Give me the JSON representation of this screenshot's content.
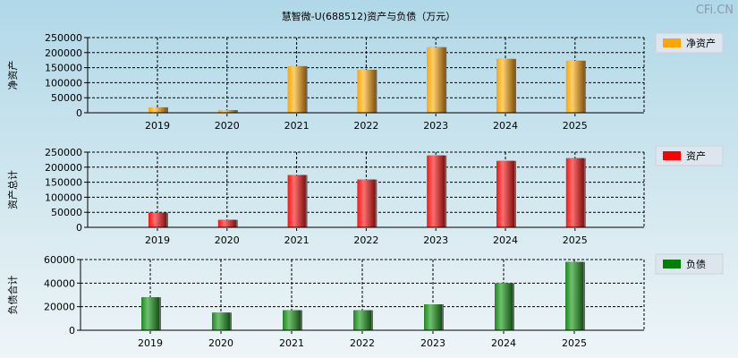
{
  "title": "慧智微-U(688512)资产与负债（万元）",
  "watermark": "CFi.CN",
  "chart_data": [
    {
      "type": "bar",
      "ylabel": "净资产",
      "legend": "净资产",
      "legend_position": "right",
      "color": "#ffa500",
      "categories": [
        "2019",
        "2020",
        "2021",
        "2022",
        "2023",
        "2024",
        "2025"
      ],
      "values": [
        18000,
        9000,
        155000,
        143000,
        218000,
        179000,
        173000
      ],
      "yticks": [
        0,
        50000,
        100000,
        150000,
        200000,
        250000
      ],
      "ylim": [
        0,
        250000
      ],
      "grid": true
    },
    {
      "type": "bar",
      "ylabel": "资产总计",
      "legend": "资产",
      "legend_position": "right",
      "color": "#ff0000",
      "categories": [
        "2019",
        "2020",
        "2021",
        "2022",
        "2023",
        "2024",
        "2025"
      ],
      "values": [
        49000,
        25000,
        174000,
        159000,
        239000,
        221000,
        230000
      ],
      "yticks": [
        0,
        50000,
        100000,
        150000,
        200000,
        250000
      ],
      "ylim": [
        0,
        250000
      ],
      "grid": true
    },
    {
      "type": "bar",
      "ylabel": "负债合计",
      "legend": "负债",
      "legend_position": "right",
      "color": "#008000",
      "categories": [
        "2019",
        "2020",
        "2021",
        "2022",
        "2023",
        "2024",
        "2025"
      ],
      "values": [
        28000,
        15000,
        17000,
        17000,
        22000,
        40000,
        58000
      ],
      "yticks": [
        0,
        20000,
        40000,
        60000
      ],
      "ylim": [
        0,
        60000
      ],
      "grid": true
    }
  ]
}
